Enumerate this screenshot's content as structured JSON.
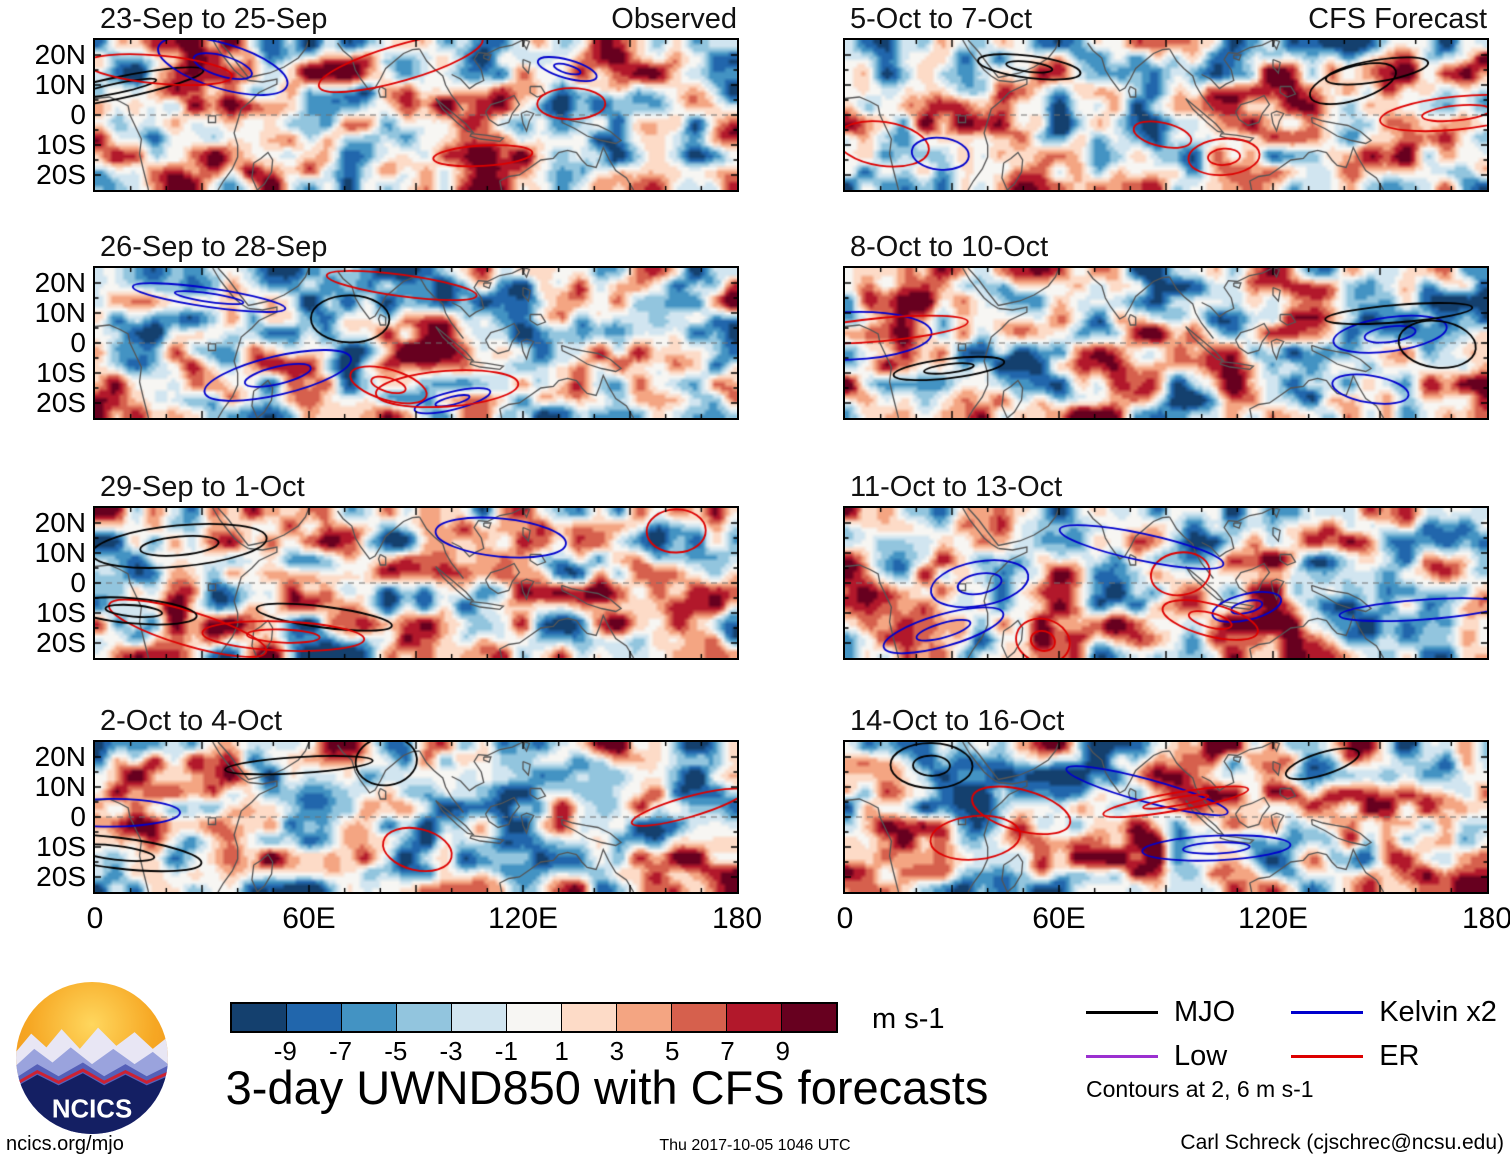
{
  "header": {
    "observed_label": "Observed",
    "forecast_label": "CFS Forecast"
  },
  "panels": [
    {
      "title": "23-Sep to 25-Sep",
      "column": "Observed"
    },
    {
      "title": "26-Sep to 28-Sep",
      "column": "Observed"
    },
    {
      "title": "29-Sep to 1-Oct",
      "column": "Observed"
    },
    {
      "title": "2-Oct to 4-Oct",
      "column": "Observed"
    },
    {
      "title": "5-Oct to 7-Oct",
      "column": "CFS Forecast"
    },
    {
      "title": "8-Oct to 10-Oct",
      "column": "CFS Forecast"
    },
    {
      "title": "11-Oct to 13-Oct",
      "column": "CFS Forecast"
    },
    {
      "title": "14-Oct to 16-Oct",
      "column": "CFS Forecast"
    }
  ],
  "axes": {
    "y_ticks": [
      "20N",
      "10N",
      "0",
      "10S",
      "20S"
    ],
    "x_ticks": [
      "0",
      "60E",
      "120E",
      "180"
    ]
  },
  "colorbar": {
    "tick_labels": [
      "-9",
      "-7",
      "-5",
      "-3",
      "-1",
      "1",
      "3",
      "5",
      "7",
      "9"
    ],
    "colors": [
      "#14406e",
      "#2166ac",
      "#4393c3",
      "#92c5de",
      "#d1e5f0",
      "#f7f6f3",
      "#fddbc7",
      "#f4a582",
      "#d6604d",
      "#b2182b",
      "#67001f"
    ],
    "units": "m s-1"
  },
  "legend": {
    "items": [
      {
        "label": "MJO",
        "color": "#000000"
      },
      {
        "label": "Low",
        "color": "#9b30d0"
      },
      {
        "label": "Kelvin x2",
        "color": "#0000cd"
      },
      {
        "label": "ER",
        "color": "#dd0000"
      }
    ],
    "note": "Contours at 2, 6 m s-1"
  },
  "title": "3-day UWND850 with CFS forecasts",
  "logo_text": "NCICS",
  "footer": {
    "left": "ncics.org/mjo",
    "center": "Thu 2017-10-05 1046 UTC",
    "right": "Carl Schreck (cjschrec@ncsu.edu)"
  },
  "chart_data": {
    "type": "heatmap",
    "variable": "UWND850",
    "description": "3-day mean 850-hPa zonal wind anomalies (shaded) with wave-filtered contours; left column observed, right column CFS forecast; domain 0-180E, 25S-25N",
    "units": "m s-1",
    "title": "3-day UWND850 with CFS forecasts",
    "x_axis": {
      "ticks": [
        "0",
        "60E",
        "120E",
        "180"
      ],
      "lon_range": [
        0,
        180
      ]
    },
    "y_axis": {
      "ticks": [
        "20N",
        "10N",
        "0",
        "10S",
        "20S"
      ],
      "lat_range": [
        -25,
        25
      ]
    },
    "color_levels": [
      -9,
      -7,
      -5,
      -3,
      -1,
      1,
      3,
      5,
      7,
      9
    ],
    "contour_levels_ms": [
      2,
      6
    ],
    "panel_columns": [
      "Observed",
      "CFS Forecast"
    ],
    "panels": [
      {
        "title": "23-Sep to 25-Sep",
        "column": "Observed"
      },
      {
        "title": "26-Sep to 28-Sep",
        "column": "Observed"
      },
      {
        "title": "29-Sep to 1-Oct",
        "column": "Observed"
      },
      {
        "title": "2-Oct to 4-Oct",
        "column": "Observed"
      },
      {
        "title": "5-Oct to 7-Oct",
        "column": "CFS Forecast"
      },
      {
        "title": "8-Oct to 10-Oct",
        "column": "CFS Forecast"
      },
      {
        "title": "11-Oct to 13-Oct",
        "column": "CFS Forecast"
      },
      {
        "title": "14-Oct to 16-Oct",
        "column": "CFS Forecast"
      }
    ],
    "wave_overlays": [
      "MJO",
      "Low",
      "Kelvin x2",
      "ER"
    ]
  }
}
